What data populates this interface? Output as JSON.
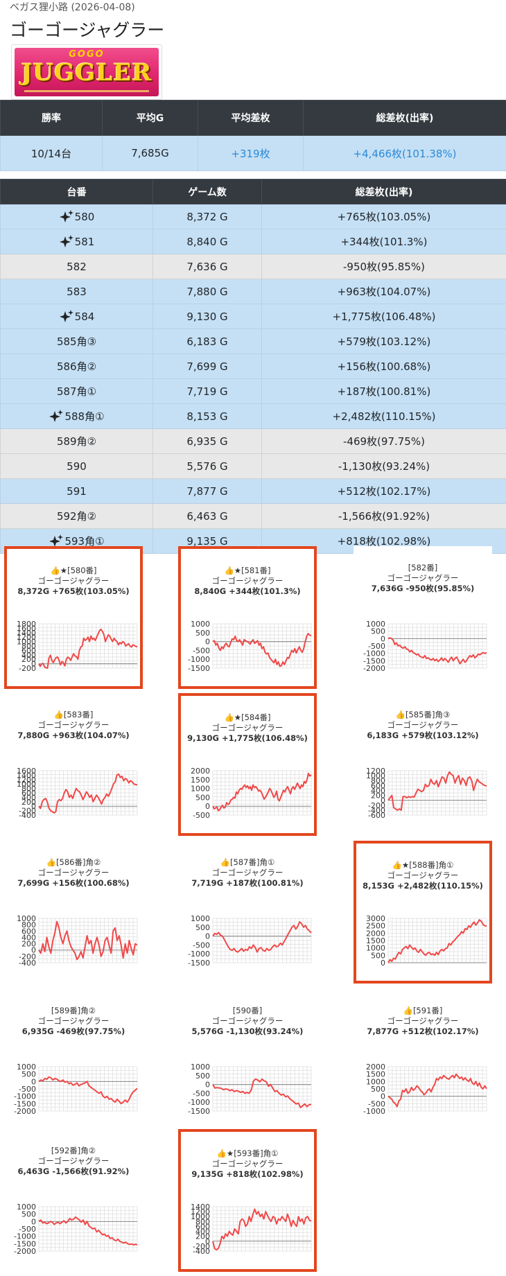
{
  "breadcrumb": "ベガス狸小路 (2026-04-08)",
  "title": "ゴーゴージャグラー",
  "logo": {
    "top": "GOGO",
    "main": "JUGGLER"
  },
  "summary": {
    "headers": [
      "勝率",
      "平均G",
      "平均差枚",
      "総差枚(出率)"
    ],
    "values": [
      "10/14台",
      "7,685G",
      "+319枚",
      "+4,466枚(101.38%)"
    ]
  },
  "detail": {
    "headers": [
      "台番",
      "ゲーム数",
      "総差枚(出率)"
    ],
    "rows": [
      {
        "machine": "580",
        "games": "8,372 G",
        "diff": "+765枚(103.05%)",
        "spark": true,
        "win": true
      },
      {
        "machine": "581",
        "games": "8,840 G",
        "diff": "+344枚(101.3%)",
        "spark": true,
        "win": true
      },
      {
        "machine": "582",
        "games": "7,636 G",
        "diff": "-950枚(95.85%)",
        "spark": false,
        "win": false
      },
      {
        "machine": "583",
        "games": "7,880 G",
        "diff": "+963枚(104.07%)",
        "spark": false,
        "win": true
      },
      {
        "machine": "584",
        "games": "9,130 G",
        "diff": "+1,775枚(106.48%)",
        "spark": true,
        "win": true
      },
      {
        "machine": "585角③",
        "games": "6,183 G",
        "diff": "+579枚(103.12%)",
        "spark": false,
        "win": true
      },
      {
        "machine": "586角②",
        "games": "7,699 G",
        "diff": "+156枚(100.68%)",
        "spark": false,
        "win": true
      },
      {
        "machine": "587角①",
        "games": "7,719 G",
        "diff": "+187枚(100.81%)",
        "spark": false,
        "win": true
      },
      {
        "machine": "588角①",
        "games": "8,153 G",
        "diff": "+2,482枚(110.15%)",
        "spark": true,
        "win": true
      },
      {
        "machine": "589角②",
        "games": "6,935 G",
        "diff": "-469枚(97.75%)",
        "spark": false,
        "win": false
      },
      {
        "machine": "590",
        "games": "5,576 G",
        "diff": "-1,130枚(93.24%)",
        "spark": false,
        "win": false
      },
      {
        "machine": "591",
        "games": "7,877 G",
        "diff": "+512枚(102.17%)",
        "spark": false,
        "win": true
      },
      {
        "machine": "592角②",
        "games": "6,463 G",
        "diff": "-1,566枚(91.92%)",
        "spark": false,
        "win": false
      },
      {
        "machine": "593角①",
        "games": "9,135 G",
        "diff": "+818枚(102.98%)",
        "spark": true,
        "win": true
      }
    ]
  },
  "colors": {
    "line": "#f04848",
    "highlight": "#e3461e",
    "win_row": "#c5e0f5",
    "lose_row": "#e8e8e8",
    "header": "#343a40",
    "accent": "#2b8ad6"
  },
  "chart_data": [
    {
      "type": "line",
      "label": "👍★[580番]",
      "model": "ゴーゴージャグラー",
      "stats": "8,372G +765枚(103.05%)",
      "highlight": true,
      "yticks": [
        1800,
        1600,
        1400,
        1200,
        1000,
        800,
        600,
        400,
        200,
        0,
        -200
      ],
      "ylim": [
        -200,
        1800
      ],
      "y": [
        0,
        -120,
        0,
        10,
        -150,
        -180,
        -200,
        250,
        380,
        150,
        50,
        180,
        280,
        300,
        150,
        -50,
        100,
        50,
        -100,
        200,
        300,
        250,
        150,
        300,
        450,
        350,
        320,
        200,
        600,
        750,
        800,
        1150,
        1050,
        1100,
        1200,
        1000,
        1250,
        1100,
        1150,
        1050,
        1200,
        1350,
        1500,
        1550,
        1450,
        1300,
        1000,
        1150,
        1300,
        1250,
        1100,
        1000,
        1150,
        1050,
        1000,
        850,
        950,
        900,
        1000,
        950,
        800,
        850,
        900,
        800,
        750,
        850,
        820,
        780,
        765
      ]
    },
    {
      "type": "line",
      "label": "👍★[581番]",
      "model": "ゴーゴージャグラー",
      "stats": "8,840G +344枚(101.3%)",
      "highlight": true,
      "yticks": [
        1000,
        500,
        0,
        -500,
        -1000,
        -1500
      ],
      "ylim": [
        -1500,
        1000
      ],
      "y": [
        0,
        50,
        -200,
        -100,
        -350,
        -500,
        -300,
        -400,
        -200,
        -100,
        -250,
        -300,
        -50,
        150,
        100,
        300,
        50,
        0,
        100,
        -50,
        -200,
        100,
        50,
        0,
        -50,
        -150,
        0,
        100,
        -100,
        -50,
        50,
        -200,
        -100,
        -400,
        -300,
        -600,
        -700,
        -650,
        -900,
        -1000,
        -1100,
        -1200,
        -1000,
        -1300,
        -1150,
        -1400,
        -1350,
        -1150,
        -1300,
        -1100,
        -900,
        -950,
        -700,
        -500,
        -600,
        -400,
        -650,
        -450,
        -300,
        -500,
        -600,
        -400,
        0,
        300,
        450,
        350,
        344
      ]
    },
    {
      "type": "line",
      "label": "[582番]",
      "model": "ゴーゴージャグラー",
      "stats": "7,636G -950枚(95.85%)",
      "highlight": false,
      "yticks": [
        1000,
        500,
        0,
        -500,
        -1000,
        -1500,
        -2000
      ],
      "ylim": [
        -2000,
        1000
      ],
      "y": [
        0,
        50,
        0,
        -100,
        -400,
        -300,
        -500,
        -450,
        -600,
        -650,
        -550,
        -700,
        -750,
        -900,
        -800,
        -950,
        -1000,
        -1100,
        -1050,
        -1200,
        -1250,
        -1300,
        -1150,
        -1350,
        -1300,
        -1400,
        -1450,
        -1350,
        -1500,
        -1400,
        -1550,
        -1450,
        -1300,
        -1500,
        -1350,
        -1450,
        -1600,
        -1400,
        -1250,
        -1500,
        -1350,
        -1250,
        -1450,
        -1700,
        -1550,
        -1400,
        -1600,
        -1500,
        -1300,
        -1150,
        -1250,
        -1100,
        -1300,
        -1200,
        -1050,
        -1100,
        -1000,
        -950,
        -1000,
        -950
      ]
    },
    {
      "type": "line",
      "label": "👍[583番]",
      "model": "ゴーゴージャグラー",
      "stats": "7,880G +963枚(104.07%)",
      "highlight": false,
      "yticks": [
        1600,
        1400,
        1200,
        1000,
        800,
        600,
        400,
        200,
        0,
        -200,
        -400
      ],
      "ylim": [
        -400,
        1600
      ],
      "y": [
        0,
        -100,
        200,
        300,
        350,
        200,
        -100,
        -200,
        -250,
        -300,
        -250,
        200,
        300,
        250,
        350,
        600,
        750,
        650,
        400,
        500,
        350,
        600,
        800,
        700,
        650,
        500,
        300,
        450,
        650,
        550,
        400,
        500,
        200,
        350,
        500,
        400,
        250,
        100,
        300,
        400,
        550,
        450,
        600,
        800,
        1000,
        1100,
        1400,
        1450,
        1300,
        1350,
        1150,
        1250,
        1200,
        1050,
        1150,
        1100,
        1000,
        980,
        963
      ]
    },
    {
      "type": "line",
      "label": "👍★[584番]",
      "model": "ゴーゴージャグラー",
      "stats": "9,130G +1,775枚(106.48%)",
      "highlight": true,
      "yticks": [
        2000,
        1500,
        1000,
        500,
        0,
        -500
      ],
      "ylim": [
        -500,
        2000
      ],
      "y": [
        0,
        -150,
        -100,
        -50,
        -250,
        -200,
        -50,
        50,
        -100,
        -50,
        200,
        100,
        150,
        350,
        400,
        500,
        450,
        800,
        700,
        900,
        1000,
        950,
        1100,
        1200,
        1050,
        1150,
        1000,
        1100,
        900,
        1200,
        1050,
        1100,
        1000,
        850,
        900,
        800,
        600,
        400,
        500,
        650,
        800,
        1000,
        900,
        700,
        500,
        600,
        850,
        400,
        300,
        500,
        700,
        900,
        800,
        1000,
        1100,
        900,
        700,
        1000,
        1100,
        950,
        1100,
        1300,
        1150,
        1000,
        1200,
        1100,
        1400,
        1300,
        1500,
        1850,
        1700,
        1775
      ]
    },
    {
      "type": "line",
      "label": "👍[585番]角③",
      "model": "ゴーゴージャグラー",
      "stats": "6,183G +579枚(103.12%)",
      "highlight": false,
      "yticks": [
        1200,
        1000,
        800,
        600,
        400,
        200,
        0,
        -200,
        -400,
        -600
      ],
      "ylim": [
        -600,
        1200
      ],
      "y": [
        0,
        100,
        200,
        -300,
        -350,
        -400,
        -350,
        -400,
        150,
        150,
        100,
        150,
        120,
        150,
        130,
        300,
        450,
        400,
        350,
        400,
        650,
        550,
        600,
        850,
        700,
        650,
        800,
        550,
        750,
        950,
        900,
        700,
        1000,
        1150,
        1050,
        1000,
        700,
        900,
        1000,
        650,
        900,
        800,
        600,
        900,
        950,
        800,
        400,
        650,
        850,
        750,
        700,
        650,
        600,
        579
      ]
    },
    {
      "type": "line",
      "label": "👍[586番]角②",
      "model": "ゴーゴージャグラー",
      "stats": "7,699G +156枚(100.68%)",
      "highlight": false,
      "yticks": [
        1000,
        800,
        600,
        400,
        200,
        0,
        -200,
        -400
      ],
      "ylim": [
        -400,
        1000
      ],
      "y": [
        0,
        -100,
        200,
        -50,
        400,
        100,
        -100,
        300,
        550,
        900,
        700,
        400,
        200,
        450,
        600,
        300,
        100,
        0,
        -100,
        -300,
        -200,
        -50,
        -250,
        100,
        450,
        200,
        300,
        -100,
        200,
        400,
        150,
        -200,
        -50,
        300,
        400,
        150,
        -100,
        600,
        700,
        300,
        450,
        150,
        -250,
        200,
        -100,
        300,
        50,
        -150,
        200,
        156
      ]
    },
    {
      "type": "line",
      "label": "👍[587番]角①",
      "model": "ゴーゴージャグラー",
      "stats": "7,719G +187枚(100.81%)",
      "highlight": false,
      "yticks": [
        1000,
        500,
        0,
        -500,
        -1000,
        -1500
      ],
      "ylim": [
        -1500,
        1000
      ],
      "y": [
        0,
        150,
        100,
        200,
        50,
        0,
        -200,
        -400,
        -600,
        -750,
        -800,
        -700,
        -850,
        -900,
        -800,
        -700,
        -850,
        -750,
        -800,
        -600,
        -700,
        -500,
        -650,
        -900,
        -700,
        -650,
        -800,
        -850,
        -700,
        -800,
        -750,
        -600,
        -500,
        -600,
        -550,
        -400,
        -500,
        -300,
        -100,
        100,
        300,
        500,
        600,
        400,
        550,
        800,
        700,
        500,
        600,
        400,
        300,
        187
      ]
    },
    {
      "type": "line",
      "label": "👍★[588番]角①",
      "model": "ゴーゴージャグラー",
      "stats": "8,153G +2,482枚(110.15%)",
      "highlight": true,
      "yticks": [
        3000,
        2500,
        2000,
        1500,
        1000,
        500,
        0
      ],
      "ylim": [
        0,
        3000
      ],
      "y": [
        0,
        200,
        100,
        300,
        250,
        500,
        700,
        600,
        900,
        1000,
        1100,
        950,
        1200,
        1050,
        900,
        1000,
        800,
        700,
        900,
        750,
        600,
        500,
        650,
        700,
        550,
        600,
        500,
        700,
        550,
        800,
        900,
        800,
        950,
        1000,
        1300,
        1200,
        1400,
        1500,
        1650,
        1800,
        1900,
        2100,
        2000,
        2300,
        2250,
        2500,
        2400,
        2600,
        2750,
        2550,
        2700,
        2900,
        2800,
        2600,
        2500,
        2482
      ]
    },
    {
      "type": "line",
      "label": "[589番]角②",
      "model": "ゴーゴージャグラー",
      "stats": "6,935G -469枚(97.75%)",
      "highlight": false,
      "yticks": [
        1000,
        500,
        0,
        -500,
        -1000,
        -1500,
        -2000
      ],
      "ylim": [
        -2000,
        1000
      ],
      "y": [
        0,
        100,
        50,
        200,
        150,
        300,
        250,
        100,
        200,
        150,
        50,
        0,
        100,
        -50,
        0,
        -150,
        -100,
        -250,
        -200,
        -100,
        -300,
        -200,
        -150,
        -100,
        0,
        -300,
        -400,
        -500,
        -600,
        -700,
        -800,
        -700,
        -1000,
        -1100,
        -1000,
        -1200,
        -1150,
        -1300,
        -1400,
        -1200,
        -1350,
        -1500,
        -1400,
        -1250,
        -1400,
        -1200,
        -900,
        -700,
        -600,
        -469
      ]
    },
    {
      "type": "line",
      "label": "[590番]",
      "model": "ゴーゴージャグラー",
      "stats": "5,576G -1,130枚(93.24%)",
      "highlight": false,
      "yticks": [
        1000,
        500,
        0,
        -500,
        -1000,
        -1500
      ],
      "ylim": [
        -1500,
        1000
      ],
      "y": [
        0,
        -200,
        -180,
        -200,
        -220,
        -300,
        -250,
        -280,
        -350,
        -300,
        -400,
        -350,
        -380,
        -450,
        -400,
        -500,
        -450,
        -500,
        -300,
        200,
        300,
        250,
        150,
        300,
        200,
        150,
        -100,
        0,
        -200,
        -400,
        -350,
        -500,
        -600,
        -550,
        -700,
        -650,
        -800,
        -900,
        -1000,
        -1100,
        -1050,
        -1300,
        -1200,
        -1100,
        -1250,
        -1150,
        -1130
      ]
    },
    {
      "type": "line",
      "label": "👍[591番]",
      "model": "ゴーゴージャグラー",
      "stats": "7,877G +512枚(102.17%)",
      "highlight": false,
      "yticks": [
        2000,
        1500,
        1000,
        500,
        0,
        -500,
        -1000
      ],
      "ylim": [
        -1000,
        2000
      ],
      "y": [
        0,
        -100,
        -200,
        -400,
        -500,
        -700,
        -300,
        -200,
        400,
        300,
        500,
        200,
        300,
        600,
        400,
        500,
        700,
        600,
        400,
        300,
        100,
        200,
        400,
        500,
        300,
        600,
        800,
        1200,
        1100,
        1300,
        1200,
        1400,
        1300,
        1200,
        1150,
        1300,
        1400,
        1250,
        1500,
        1350,
        1200,
        1300,
        1100,
        1250,
        1100,
        1000,
        1200,
        900,
        800,
        1000,
        700,
        900,
        600,
        500,
        700,
        512
      ]
    },
    {
      "type": "line",
      "label": "[592番]角②",
      "model": "ゴーゴージャグラー",
      "stats": "6,463G -1,566枚(91.92%)",
      "highlight": false,
      "yticks": [
        1000,
        500,
        0,
        -500,
        -1000,
        -1500,
        -2000
      ],
      "ylim": [
        -2000,
        1000
      ],
      "y": [
        0,
        100,
        -100,
        -50,
        -150,
        -100,
        0,
        -50,
        -200,
        -100,
        -50,
        -150,
        -50,
        50,
        -100,
        0,
        200,
        100,
        150,
        300,
        200,
        100,
        -50,
        100,
        -200,
        0,
        -300,
        -400,
        -500,
        -450,
        -700,
        -600,
        -750,
        -900,
        -850,
        -1000,
        -950,
        -1150,
        -1100,
        -1250,
        -1300,
        -1200,
        -1350,
        -1400,
        -1450,
        -1400,
        -1500,
        -1550,
        -1520,
        -1580,
        -1550,
        -1566
      ]
    },
    {
      "type": "line",
      "label": "👍★[593番]角①",
      "model": "ゴーゴージャグラー",
      "stats": "9,135G +818枚(102.98%)",
      "highlight": true,
      "yticks": [
        1400,
        1200,
        1000,
        800,
        600,
        400,
        200,
        0,
        -200,
        -400
      ],
      "ylim": [
        -400,
        1400
      ],
      "y": [
        0,
        -300,
        -350,
        -300,
        -100,
        200,
        100,
        300,
        200,
        400,
        300,
        250,
        500,
        400,
        300,
        800,
        900,
        850,
        600,
        700,
        1000,
        800,
        1100,
        1300,
        1100,
        1200,
        1000,
        1100,
        900,
        1200,
        1050,
        900,
        800,
        1000,
        950,
        700,
        900,
        850,
        1000,
        900,
        800,
        1100,
        900,
        600,
        850,
        700,
        600,
        1000,
        800,
        900,
        700,
        950,
        1000,
        850,
        818
      ]
    }
  ]
}
